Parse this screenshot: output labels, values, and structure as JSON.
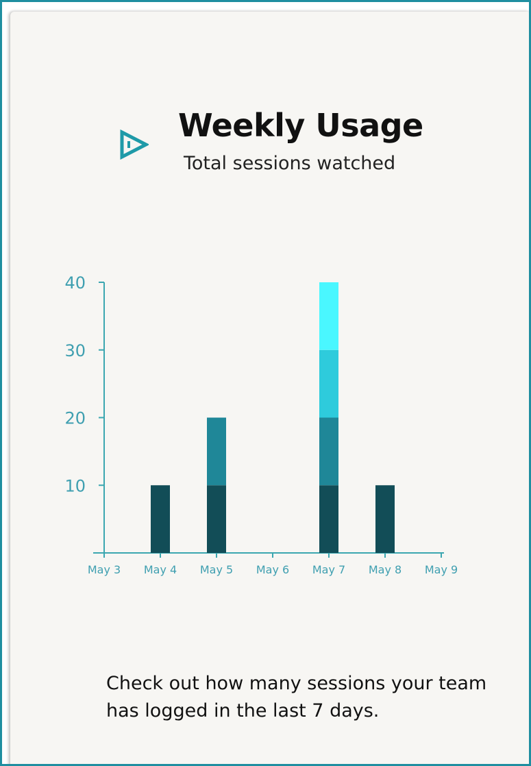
{
  "card": {
    "title": "Weekly Usage",
    "subtitle": "Total sessions watched",
    "logo_icon": "play-triangle-icon",
    "description": "Check out how many sessions your team has logged in the last 7 days."
  },
  "colors": {
    "frame_border": "#1f8ea0",
    "card_background": "#f7f6f3",
    "axis": "#3aa6b0",
    "tick_label": "#3f9fb0"
  },
  "chart_data": {
    "type": "bar",
    "stacked": true,
    "categories": [
      "May 3",
      "May 4",
      "May 5",
      "May 6",
      "May 7",
      "May 8",
      "May 9"
    ],
    "series": [
      {
        "color": "#124d57",
        "values": [
          0,
          10,
          10,
          0,
          10,
          10,
          0
        ]
      },
      {
        "color": "#1f8798",
        "values": [
          0,
          0,
          10,
          0,
          10,
          0,
          0
        ]
      },
      {
        "color": "#2ecbdc",
        "values": [
          0,
          0,
          0,
          0,
          10,
          0,
          0
        ]
      },
      {
        "color": "#4af7ff",
        "values": [
          0,
          0,
          0,
          0,
          10,
          0,
          0
        ]
      }
    ],
    "yticks": [
      10,
      20,
      30,
      40
    ],
    "ylim": [
      0,
      40
    ],
    "title": "",
    "xlabel": "",
    "ylabel": "",
    "grid": false,
    "legend": "none"
  }
}
